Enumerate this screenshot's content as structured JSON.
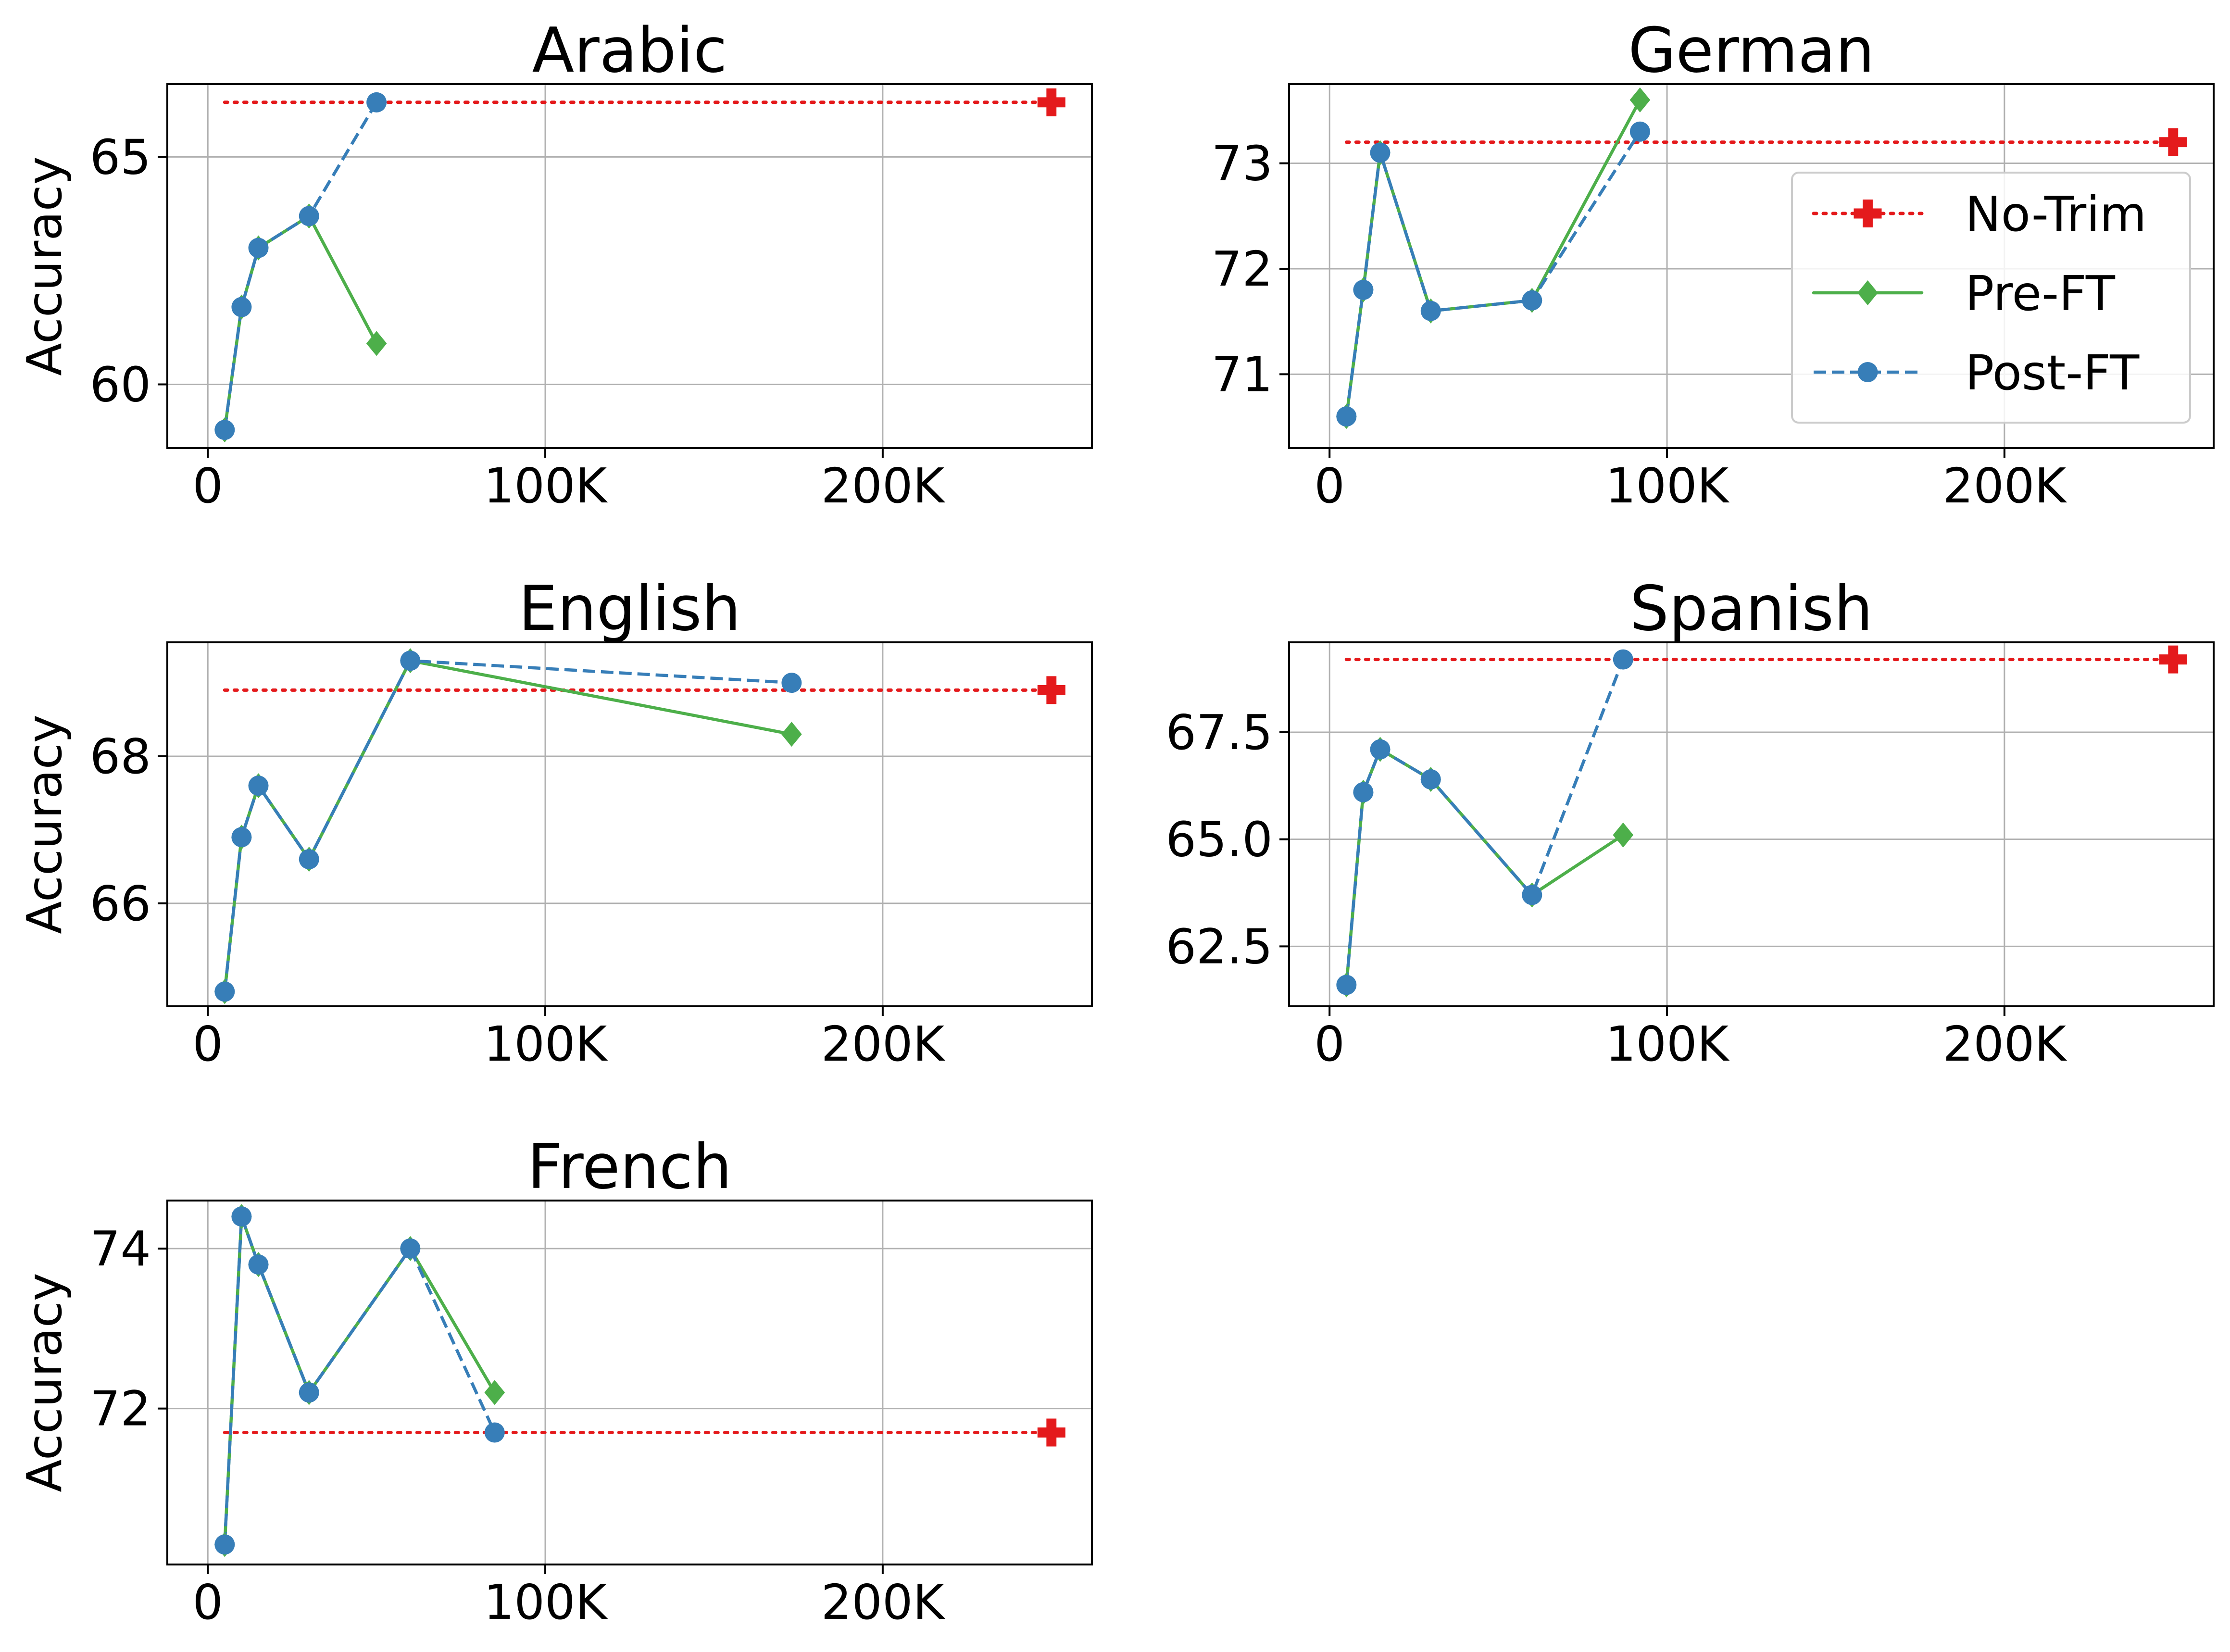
{
  "legend": {
    "items": [
      {
        "label": "No-Trim",
        "color": "#e41a1c",
        "line": "dotted",
        "marker": "plus"
      },
      {
        "label": "Pre-FT",
        "color": "#4daf4a",
        "line": "solid",
        "marker": "diamond"
      },
      {
        "label": "Post-FT",
        "color": "#377eb8",
        "line": "dashed",
        "marker": "circle"
      }
    ],
    "placement": "right (German panel)"
  },
  "chart_data": [
    {
      "type": "line",
      "title": "Arabic",
      "xlabel": "",
      "ylabel": "Accuracy",
      "xlim": [
        -12000,
        262000
      ],
      "ylim": [
        58.6,
        66.6
      ],
      "xticks": [
        0,
        100000,
        200000
      ],
      "xtick_labels": [
        "0",
        "100K",
        "200K"
      ],
      "yticks": [
        60,
        65
      ],
      "ytick_labels": [
        "60",
        "65"
      ],
      "grid": true,
      "series": [
        {
          "name": "No-Trim",
          "x": [
            5000,
            250000
          ],
          "y": [
            66.2,
            66.2
          ],
          "marker_at": [
            250000
          ]
        },
        {
          "name": "Pre-FT",
          "x": [
            5000,
            10000,
            15000,
            30000,
            50000
          ],
          "y": [
            59.0,
            61.7,
            63.0,
            63.7,
            60.9
          ]
        },
        {
          "name": "Post-FT",
          "x": [
            5000,
            10000,
            15000,
            30000,
            50000
          ],
          "y": [
            59.0,
            61.7,
            63.0,
            63.7,
            66.2
          ]
        }
      ]
    },
    {
      "type": "line",
      "title": "German",
      "xlabel": "",
      "ylabel": "",
      "xlim": [
        -12000,
        262000
      ],
      "ylim": [
        70.3,
        73.75
      ],
      "xticks": [
        0,
        100000,
        200000
      ],
      "xtick_labels": [
        "0",
        "100K",
        "200K"
      ],
      "yticks": [
        71,
        72,
        73
      ],
      "ytick_labels": [
        "71",
        "72",
        "73"
      ],
      "grid": true,
      "series": [
        {
          "name": "No-Trim",
          "x": [
            5000,
            250000
          ],
          "y": [
            73.2,
            73.2
          ],
          "marker_at": [
            250000
          ]
        },
        {
          "name": "Pre-FT",
          "x": [
            5000,
            10000,
            15000,
            30000,
            60000,
            92000
          ],
          "y": [
            70.6,
            71.8,
            73.1,
            71.6,
            71.7,
            73.6
          ]
        },
        {
          "name": "Post-FT",
          "x": [
            5000,
            10000,
            15000,
            30000,
            60000,
            92000
          ],
          "y": [
            70.6,
            71.8,
            73.1,
            71.6,
            71.7,
            73.3
          ]
        }
      ]
    },
    {
      "type": "line",
      "title": "English",
      "xlabel": "",
      "ylabel": "Accuracy",
      "xlim": [
        -12000,
        262000
      ],
      "ylim": [
        64.6,
        69.55
      ],
      "xticks": [
        0,
        100000,
        200000
      ],
      "xtick_labels": [
        "0",
        "100K",
        "200K"
      ],
      "yticks": [
        66,
        68
      ],
      "ytick_labels": [
        "66",
        "68"
      ],
      "grid": true,
      "series": [
        {
          "name": "No-Trim",
          "x": [
            5000,
            250000
          ],
          "y": [
            68.9,
            68.9
          ],
          "marker_at": [
            250000
          ]
        },
        {
          "name": "Pre-FT",
          "x": [
            5000,
            10000,
            15000,
            30000,
            60000,
            173000
          ],
          "y": [
            64.8,
            66.9,
            67.6,
            66.6,
            69.3,
            68.3
          ]
        },
        {
          "name": "Post-FT",
          "x": [
            5000,
            10000,
            15000,
            30000,
            60000,
            173000
          ],
          "y": [
            64.8,
            66.9,
            67.6,
            66.6,
            69.3,
            69.0
          ]
        }
      ]
    },
    {
      "type": "line",
      "title": "Spanish",
      "xlabel": "",
      "ylabel": "",
      "xlim": [
        -12000,
        262000
      ],
      "ylim": [
        61.1,
        69.6
      ],
      "xticks": [
        0,
        100000,
        200000
      ],
      "xtick_labels": [
        "0",
        "100K",
        "200K"
      ],
      "yticks": [
        62.5,
        65.0,
        67.5
      ],
      "ytick_labels": [
        "62.5",
        "65.0",
        "67.5"
      ],
      "grid": true,
      "series": [
        {
          "name": "No-Trim",
          "x": [
            5000,
            250000
          ],
          "y": [
            69.2,
            69.2
          ],
          "marker_at": [
            250000
          ]
        },
        {
          "name": "Pre-FT",
          "x": [
            5000,
            10000,
            15000,
            30000,
            60000,
            87000
          ],
          "y": [
            61.6,
            66.1,
            67.1,
            66.4,
            63.7,
            65.1
          ]
        },
        {
          "name": "Post-FT",
          "x": [
            5000,
            10000,
            15000,
            30000,
            60000,
            87000
          ],
          "y": [
            61.6,
            66.1,
            67.1,
            66.4,
            63.7,
            69.2
          ]
        }
      ]
    },
    {
      "type": "line",
      "title": "French",
      "xlabel": "",
      "ylabel": "Accuracy",
      "xlim": [
        -12000,
        262000
      ],
      "ylim": [
        70.05,
        74.6
      ],
      "xticks": [
        0,
        100000,
        200000
      ],
      "xtick_labels": [
        "0",
        "100K",
        "200K"
      ],
      "yticks": [
        72,
        74
      ],
      "ytick_labels": [
        "72",
        "74"
      ],
      "grid": true,
      "series": [
        {
          "name": "No-Trim",
          "x": [
            5000,
            250000
          ],
          "y": [
            71.7,
            71.7
          ],
          "marker_at": [
            250000
          ]
        },
        {
          "name": "Pre-FT",
          "x": [
            5000,
            10000,
            15000,
            30000,
            60000,
            85000
          ],
          "y": [
            70.3,
            74.4,
            73.8,
            72.2,
            74.0,
            72.2
          ]
        },
        {
          "name": "Post-FT",
          "x": [
            5000,
            10000,
            15000,
            30000,
            60000,
            85000
          ],
          "y": [
            70.3,
            74.4,
            73.8,
            72.2,
            74.0,
            71.7
          ]
        }
      ]
    }
  ]
}
